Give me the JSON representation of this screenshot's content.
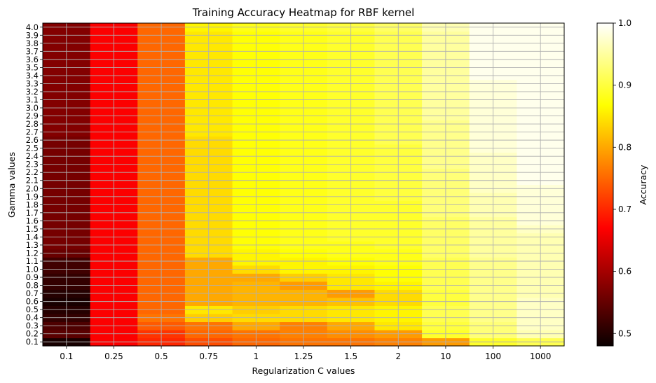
{
  "chart_data": {
    "type": "heatmap",
    "title": "Training Accuracy Heatmap for RBF kernel",
    "xlabel": "Regularization C values",
    "ylabel": "Gamma values",
    "colorbar_label": "Accuracy",
    "colormap": "hot",
    "vmin": 0.48,
    "vmax": 1.0,
    "colorbar_ticks": [
      "0.5",
      "0.6",
      "0.7",
      "0.8",
      "0.9",
      "1.0"
    ],
    "colorbar_tick_values": [
      0.5,
      0.6,
      0.7,
      0.8,
      0.9,
      1.0
    ],
    "x_categories": [
      "0.1",
      "0.25",
      "0.5",
      "0.75",
      "1",
      "1.25",
      "1.5",
      "2",
      "10",
      "100",
      "1000"
    ],
    "y_categories": [
      "0.1",
      "0.2",
      "0.3",
      "0.4",
      "0.5",
      "0.6",
      "0.7",
      "0.8",
      "0.9",
      "1.0",
      "1.1",
      "1.2",
      "1.3",
      "1.4",
      "1.5",
      "1.6",
      "1.7",
      "1.8",
      "1.9",
      "2.0",
      "2.1",
      "2.2",
      "2.3",
      "2.4",
      "2.5",
      "2.6",
      "2.7",
      "2.8",
      "2.9",
      "3.0",
      "3.1",
      "3.2",
      "3.3",
      "3.4",
      "3.5",
      "3.6",
      "3.7",
      "3.8",
      "3.9",
      "4.0"
    ],
    "grid": true,
    "values_by_gamma": [
      [
        0.49,
        0.66,
        0.7,
        0.73,
        0.75,
        0.76,
        0.76,
        0.77,
        0.79,
        0.89,
        0.91
      ],
      [
        0.54,
        0.66,
        0.71,
        0.75,
        0.76,
        0.77,
        0.78,
        0.79,
        0.89,
        0.93,
        0.96
      ],
      [
        0.53,
        0.66,
        0.74,
        0.76,
        0.8,
        0.77,
        0.8,
        0.85,
        0.9,
        0.93,
        0.97
      ],
      [
        0.51,
        0.66,
        0.76,
        0.83,
        0.84,
        0.84,
        0.85,
        0.86,
        0.91,
        0.94,
        0.97
      ],
      [
        0.5,
        0.66,
        0.75,
        0.85,
        0.83,
        0.84,
        0.85,
        0.86,
        0.91,
        0.94,
        0.97
      ],
      [
        0.49,
        0.66,
        0.75,
        0.8,
        0.81,
        0.81,
        0.82,
        0.84,
        0.9,
        0.94,
        0.97
      ],
      [
        0.5,
        0.66,
        0.75,
        0.8,
        0.81,
        0.81,
        0.79,
        0.84,
        0.9,
        0.94,
        0.96
      ],
      [
        0.51,
        0.66,
        0.75,
        0.8,
        0.81,
        0.79,
        0.85,
        0.86,
        0.91,
        0.94,
        0.96
      ],
      [
        0.51,
        0.66,
        0.75,
        0.8,
        0.8,
        0.83,
        0.85,
        0.87,
        0.91,
        0.94,
        0.96
      ],
      [
        0.52,
        0.66,
        0.75,
        0.8,
        0.84,
        0.86,
        0.86,
        0.87,
        0.91,
        0.94,
        0.96
      ],
      [
        0.52,
        0.66,
        0.75,
        0.8,
        0.86,
        0.86,
        0.87,
        0.88,
        0.91,
        0.94,
        0.96
      ],
      [
        0.55,
        0.66,
        0.75,
        0.84,
        0.86,
        0.87,
        0.88,
        0.88,
        0.92,
        0.95,
        0.96
      ],
      [
        0.56,
        0.66,
        0.75,
        0.84,
        0.87,
        0.88,
        0.88,
        0.89,
        0.92,
        0.95,
        0.96
      ],
      [
        0.56,
        0.66,
        0.75,
        0.84,
        0.87,
        0.88,
        0.89,
        0.89,
        0.92,
        0.95,
        0.96
      ],
      [
        0.56,
        0.66,
        0.75,
        0.84,
        0.87,
        0.88,
        0.89,
        0.89,
        0.92,
        0.95,
        0.97
      ],
      [
        0.56,
        0.66,
        0.75,
        0.84,
        0.87,
        0.88,
        0.89,
        0.89,
        0.92,
        0.95,
        0.98
      ],
      [
        0.56,
        0.66,
        0.75,
        0.84,
        0.87,
        0.88,
        0.89,
        0.89,
        0.93,
        0.96,
        0.98
      ],
      [
        0.56,
        0.66,
        0.75,
        0.84,
        0.87,
        0.88,
        0.89,
        0.89,
        0.93,
        0.96,
        0.98
      ],
      [
        0.56,
        0.66,
        0.75,
        0.84,
        0.87,
        0.88,
        0.89,
        0.9,
        0.93,
        0.96,
        0.98
      ],
      [
        0.56,
        0.66,
        0.75,
        0.84,
        0.87,
        0.88,
        0.89,
        0.9,
        0.93,
        0.97,
        0.98
      ],
      [
        0.56,
        0.66,
        0.75,
        0.84,
        0.87,
        0.88,
        0.89,
        0.9,
        0.93,
        0.97,
        0.99
      ],
      [
        0.56,
        0.66,
        0.75,
        0.84,
        0.87,
        0.88,
        0.89,
        0.9,
        0.93,
        0.97,
        0.99
      ],
      [
        0.56,
        0.66,
        0.75,
        0.84,
        0.87,
        0.88,
        0.89,
        0.9,
        0.94,
        0.97,
        0.99
      ],
      [
        0.56,
        0.66,
        0.75,
        0.84,
        0.87,
        0.88,
        0.89,
        0.9,
        0.94,
        0.97,
        0.99
      ],
      [
        0.56,
        0.66,
        0.75,
        0.84,
        0.87,
        0.88,
        0.89,
        0.9,
        0.94,
        0.98,
        0.99
      ],
      [
        0.56,
        0.66,
        0.75,
        0.84,
        0.87,
        0.88,
        0.89,
        0.91,
        0.94,
        0.98,
        0.99
      ],
      [
        0.57,
        0.66,
        0.75,
        0.85,
        0.87,
        0.88,
        0.89,
        0.91,
        0.94,
        0.98,
        0.99
      ],
      [
        0.57,
        0.66,
        0.75,
        0.85,
        0.87,
        0.88,
        0.89,
        0.91,
        0.94,
        0.98,
        0.99
      ],
      [
        0.57,
        0.66,
        0.75,
        0.85,
        0.87,
        0.88,
        0.89,
        0.91,
        0.95,
        0.98,
        0.99
      ],
      [
        0.57,
        0.66,
        0.75,
        0.85,
        0.87,
        0.88,
        0.89,
        0.91,
        0.95,
        0.98,
        0.99
      ],
      [
        0.57,
        0.66,
        0.75,
        0.85,
        0.87,
        0.88,
        0.89,
        0.91,
        0.95,
        0.98,
        0.99
      ],
      [
        0.57,
        0.66,
        0.75,
        0.85,
        0.87,
        0.88,
        0.89,
        0.91,
        0.95,
        0.98,
        0.99
      ],
      [
        0.57,
        0.66,
        0.75,
        0.85,
        0.87,
        0.88,
        0.89,
        0.91,
        0.95,
        0.98,
        0.99
      ],
      [
        0.57,
        0.66,
        0.75,
        0.85,
        0.87,
        0.88,
        0.89,
        0.91,
        0.95,
        0.99,
        0.99
      ],
      [
        0.57,
        0.66,
        0.75,
        0.85,
        0.87,
        0.88,
        0.89,
        0.91,
        0.95,
        0.99,
        0.99
      ],
      [
        0.57,
        0.66,
        0.75,
        0.85,
        0.87,
        0.88,
        0.89,
        0.91,
        0.95,
        0.99,
        0.99
      ],
      [
        0.57,
        0.66,
        0.75,
        0.85,
        0.87,
        0.88,
        0.89,
        0.91,
        0.95,
        0.99,
        0.99
      ],
      [
        0.57,
        0.66,
        0.75,
        0.85,
        0.87,
        0.88,
        0.89,
        0.91,
        0.95,
        0.99,
        0.99
      ],
      [
        0.57,
        0.66,
        0.75,
        0.85,
        0.87,
        0.88,
        0.89,
        0.91,
        0.95,
        0.99,
        0.99
      ],
      [
        0.57,
        0.66,
        0.75,
        0.86,
        0.88,
        0.89,
        0.9,
        0.92,
        0.96,
        0.99,
        0.99
      ]
    ]
  }
}
